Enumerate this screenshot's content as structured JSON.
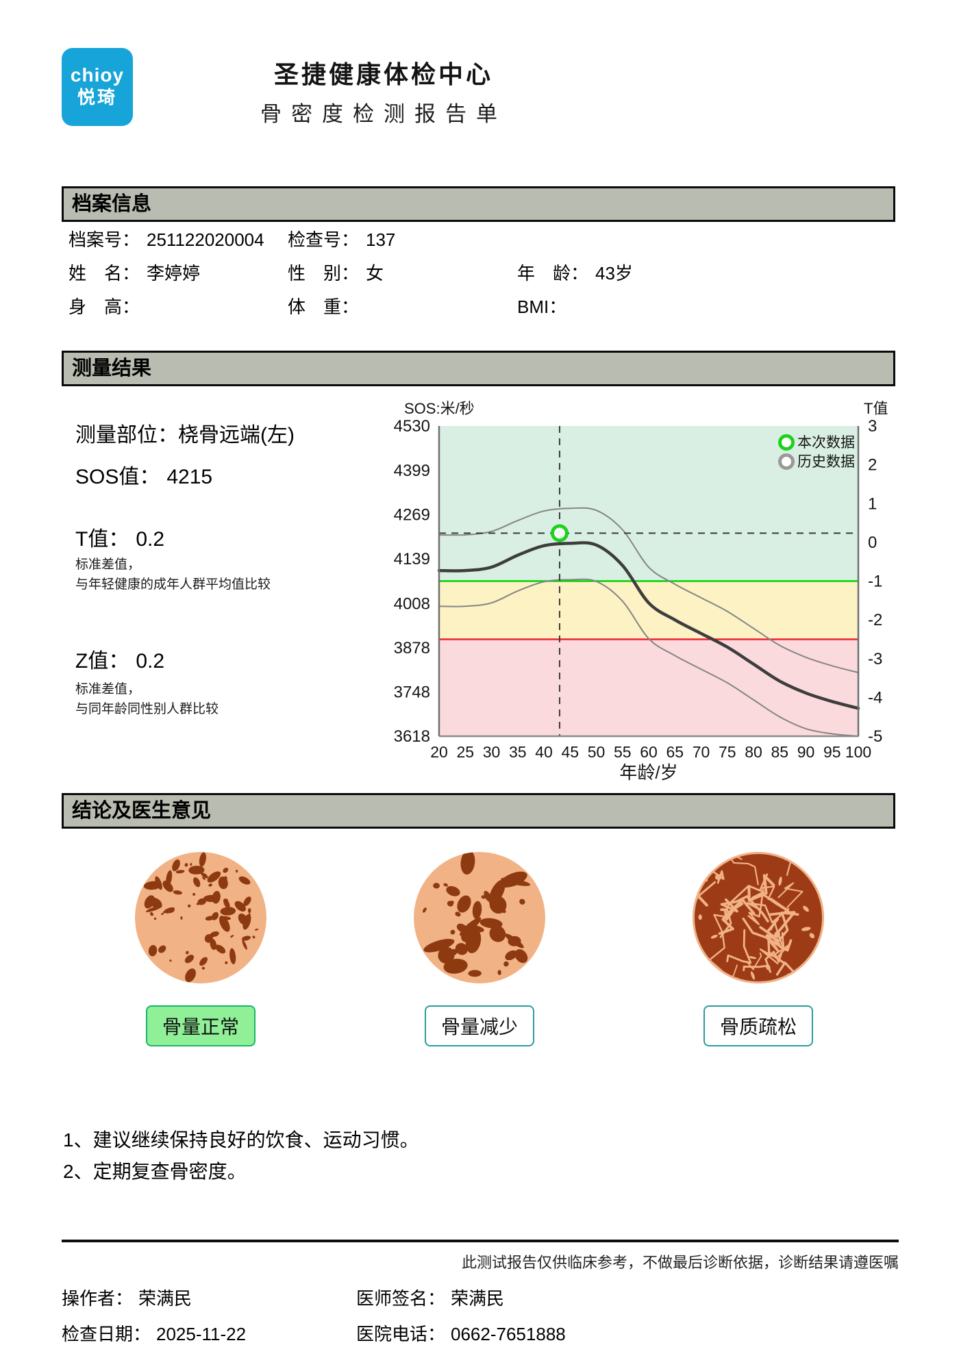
{
  "header": {
    "logo_line1": "chioy",
    "logo_line2": "悦琦",
    "center_name": "圣捷健康体检中心",
    "report_title": "骨密度检测报告单"
  },
  "sections": {
    "archive": "档案信息",
    "result": "测量结果",
    "conclusion": "结论及医生意见"
  },
  "archive": {
    "file_no_label": "档案号：",
    "file_no": "251122020004",
    "exam_no_label": "检查号：",
    "exam_no": "137",
    "name_label": "姓　名：",
    "name": "李婷婷",
    "gender_label": "性　别：",
    "gender": "女",
    "age_label": "年　龄：",
    "age": "43岁",
    "height_label": "身　高：",
    "height": "",
    "weight_label": "体　重：",
    "weight": "",
    "bmi_label": "BMI：",
    "bmi": ""
  },
  "measurement": {
    "site_label": "测量部位：",
    "site": "桡骨远端(左)",
    "sos_label": "SOS值：",
    "sos": "4215",
    "t_label": "T值：",
    "t": "0.2",
    "t_note1": "标准差值，",
    "t_note2": "与年轻健康的成年人群平均值比较",
    "z_label": "Z值：",
    "z": "0.2",
    "z_note1": "标准差值，",
    "z_note2": "与同年龄同性别人群比较"
  },
  "chart_data": {
    "type": "line",
    "y_axis_label": "SOS:米/秒",
    "y2_axis_label": "T值",
    "x_axis_label": "年龄/岁",
    "x_range": [
      20,
      100
    ],
    "y_range": [
      3618,
      4530
    ],
    "t_range": [
      -5,
      3
    ],
    "x_ticks": [
      20,
      25,
      30,
      35,
      40,
      45,
      50,
      55,
      60,
      65,
      70,
      75,
      80,
      85,
      90,
      95,
      100
    ],
    "y_ticks": [
      4530,
      4399,
      4269,
      4139,
      4008,
      3878,
      3748,
      3618
    ],
    "t_ticks": [
      3,
      2,
      1,
      0,
      -1,
      -2,
      -3,
      -4,
      -5
    ],
    "zones": [
      {
        "from_t": 3,
        "to_t": -1,
        "color": "#d9efe3"
      },
      {
        "from_t": -1,
        "to_t": -2.5,
        "color": "#fcf2c4"
      },
      {
        "from_t": -2.5,
        "to_t": -5,
        "color": "#fadadd"
      }
    ],
    "threshold_lines": [
      {
        "t": -1,
        "color": "#00d400"
      },
      {
        "t": -2.5,
        "color": "#ee2233"
      }
    ],
    "x": [
      20,
      25,
      30,
      35,
      40,
      45,
      50,
      55,
      60,
      65,
      70,
      75,
      80,
      85,
      90,
      95,
      100
    ],
    "series": [
      {
        "name": "reference-mean",
        "color": "#3d3d3d",
        "width": 4.5,
        "values": [
          4105,
          4105,
          4115,
          4150,
          4178,
          4185,
          4180,
          4120,
          4010,
          3960,
          3920,
          3880,
          3830,
          3780,
          3745,
          3720,
          3700
        ]
      },
      {
        "name": "reference-upper",
        "color": "#858585",
        "width": 2,
        "values": [
          4210,
          4210,
          4220,
          4252,
          4280,
          4288,
          4282,
          4225,
          4115,
          4065,
          4025,
          3985,
          3935,
          3885,
          3850,
          3825,
          3805
        ]
      },
      {
        "name": "reference-lower",
        "color": "#858585",
        "width": 2,
        "values": [
          4000,
          4000,
          4010,
          4045,
          4072,
          4078,
          4073,
          4015,
          3905,
          3855,
          3815,
          3775,
          3725,
          3675,
          3640,
          3625,
          3618
        ]
      }
    ],
    "patient_point": {
      "age": 43,
      "sos": 4215,
      "color": "#1ed11e"
    },
    "legend": [
      {
        "label": "本次数据",
        "color": "#1ed11e"
      },
      {
        "label": "历史数据",
        "color": "#999999"
      }
    ],
    "legend_position": "top-right",
    "grid": false
  },
  "conclusion": {
    "categories": [
      {
        "label": "骨量正常",
        "highlight": true,
        "icon": "bone-normal-icon"
      },
      {
        "label": "骨量减少",
        "highlight": false,
        "icon": "bone-osteopenia-icon"
      },
      {
        "label": "骨质疏松",
        "highlight": false,
        "icon": "bone-osteoporosis-icon"
      }
    ],
    "advice": [
      "1、建议继续保持良好的饮食、运动习惯。",
      "2、定期复查骨密度。"
    ]
  },
  "footer": {
    "disclaimer": "此测试报告仅供临床参考，不做最后诊断依据，诊断结果请遵医嘱",
    "operator_label": "操作者：",
    "operator": "荣满民",
    "doctor_label": "医师签名：",
    "doctor": "荣满民",
    "date_label": "检查日期：",
    "date": "2025-11-22",
    "phone_label": "医院电话：",
    "phone": "0662-7651888"
  },
  "colors": {
    "logo_blue": "#17a4d8",
    "bar_gray": "#b9bcb0",
    "bone_light": "#f1b286",
    "bone_dark": "#8d3a10",
    "bone_porous_bg": "#9d3b16",
    "highlight_green": "#90f098",
    "teal_border": "#2a9d9c"
  }
}
